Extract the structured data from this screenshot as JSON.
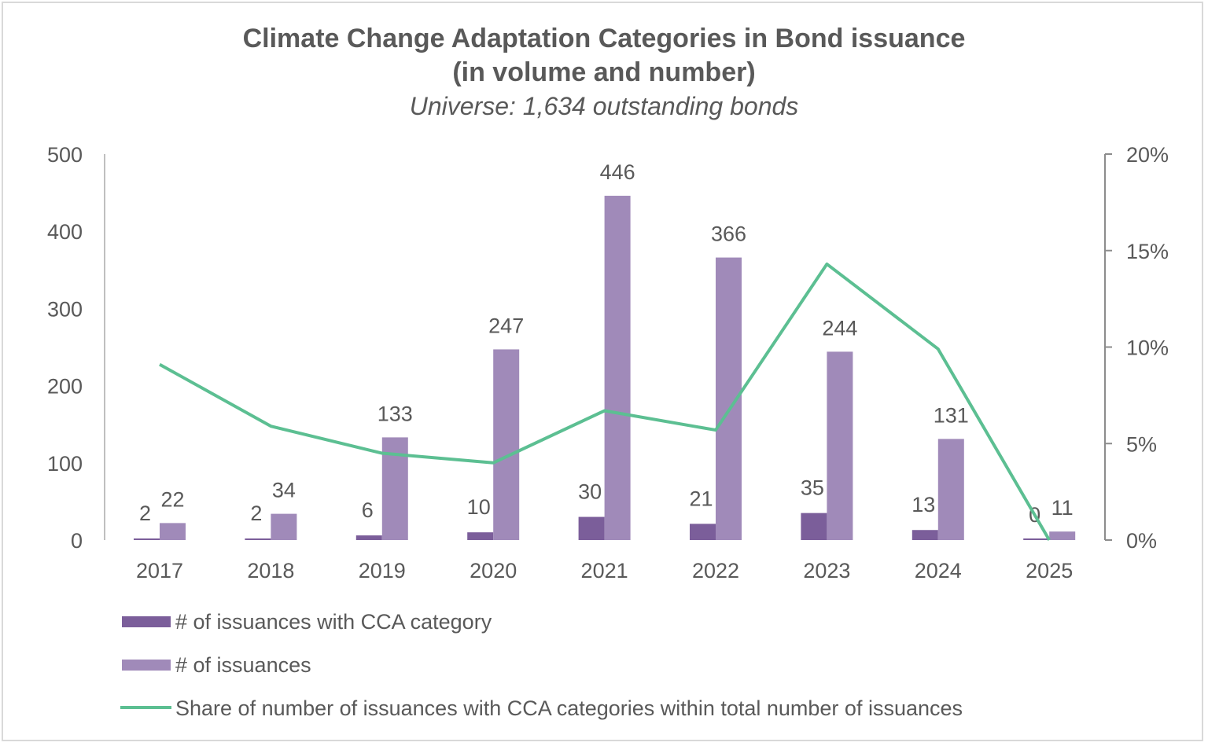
{
  "chart_data": {
    "type": "bar",
    "title": [
      "Climate Change Adaptation Categories in Bond issuance",
      "(in volume and number)"
    ],
    "subtitle": "Universe: 1,634 outstanding bonds",
    "categories": [
      "2017",
      "2018",
      "2019",
      "2020",
      "2021",
      "2022",
      "2023",
      "2024",
      "2025"
    ],
    "series": [
      {
        "name": "# of issuances with CCA category",
        "type": "bar",
        "axis": "left",
        "color": "#7b5e9a",
        "values": [
          2,
          2,
          6,
          10,
          30,
          21,
          35,
          13,
          0
        ]
      },
      {
        "name": "# of issuances",
        "type": "bar",
        "axis": "left",
        "color": "#a08ab9",
        "values": [
          22,
          34,
          133,
          247,
          446,
          366,
          244,
          131,
          11
        ]
      },
      {
        "name": "Share of number of issuances with CCA categories within total number of issuances",
        "type": "line",
        "axis": "right",
        "color": "#5cbf92",
        "values": [
          9.1,
          5.9,
          4.5,
          4.0,
          6.7,
          5.7,
          14.3,
          9.9,
          0
        ]
      }
    ],
    "y_left": {
      "lim": [
        0,
        500
      ],
      "ticks": [
        "0",
        "100",
        "200",
        "300",
        "400",
        "500"
      ]
    },
    "y_right": {
      "lim": [
        0,
        20
      ],
      "ticks": [
        "0%",
        "5%",
        "10%",
        "15%",
        "20%"
      ]
    },
    "grid": false,
    "legend": "bottom-left"
  }
}
